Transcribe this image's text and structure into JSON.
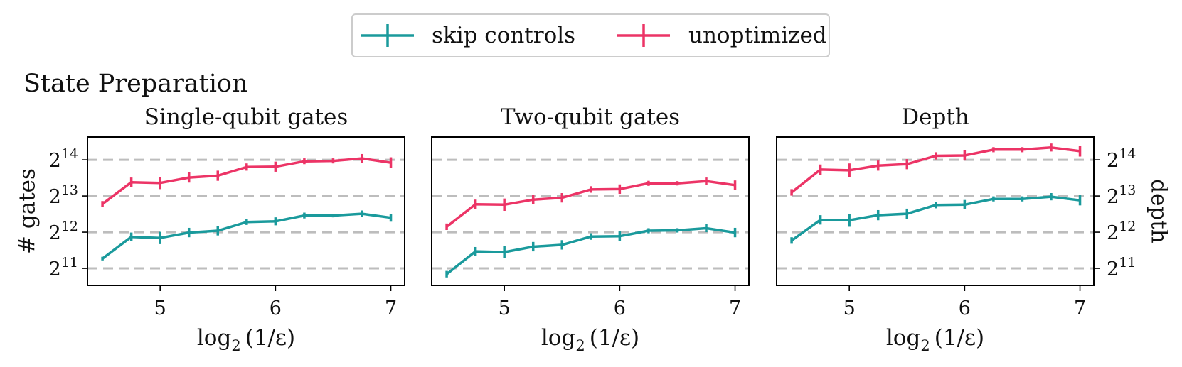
{
  "figure_title": "State Preparation",
  "legend": {
    "entries": [
      {
        "label": "skip controls",
        "color": "#1a9a9c"
      },
      {
        "label": "unoptimized",
        "color": "#ec3466"
      }
    ]
  },
  "colors": {
    "skip": "#1a9a9c",
    "unopt": "#ec3466",
    "grid": "#bdbdbd",
    "axis": "#000000"
  },
  "y_tick_base": "2",
  "chart_data": [
    {
      "type": "line",
      "title": "Single-qubit gates",
      "xlabel": "log2(1/ε)",
      "ylabel": "# gates",
      "ylabel_side": "left",
      "x": [
        4.5,
        4.75,
        5.0,
        5.25,
        5.5,
        5.75,
        6.0,
        6.25,
        6.5,
        6.75,
        7.0
      ],
      "xticks": [
        5,
        6,
        7
      ],
      "xlim": [
        4.37,
        7.12
      ],
      "ylim_log2": [
        10.53,
        14.63
      ],
      "yticks_log2": [
        11,
        12,
        13,
        14
      ],
      "grid": "horizontal dashed",
      "series": [
        {
          "name": "skip controls",
          "color": "#1a9a9c",
          "values_log2": [
            11.27,
            11.87,
            11.84,
            11.99,
            12.04,
            12.28,
            12.3,
            12.46,
            12.46,
            12.51,
            12.4
          ],
          "errors": [
            0.05,
            0.12,
            0.17,
            0.13,
            0.13,
            0.08,
            0.11,
            0.08,
            0.05,
            0.09,
            0.11
          ]
        },
        {
          "name": "unoptimized",
          "color": "#ec3466",
          "values_log2": [
            12.78,
            13.38,
            13.36,
            13.51,
            13.56,
            13.8,
            13.81,
            13.96,
            13.97,
            14.04,
            13.92
          ],
          "errors": [
            0.08,
            0.13,
            0.17,
            0.14,
            0.14,
            0.1,
            0.14,
            0.08,
            0.07,
            0.12,
            0.15
          ]
        }
      ]
    },
    {
      "type": "line",
      "title": "Two-qubit gates",
      "xlabel": "log2(1/ε)",
      "ylabel": "",
      "ylabel_side": "none",
      "x": [
        4.5,
        4.75,
        5.0,
        5.25,
        5.5,
        5.75,
        6.0,
        6.25,
        6.5,
        6.75,
        7.0
      ],
      "xticks": [
        5,
        6,
        7
      ],
      "xlim": [
        4.37,
        7.12
      ],
      "ylim_log2": [
        10.53,
        14.63
      ],
      "yticks_log2": [
        11,
        12,
        13,
        14
      ],
      "grid": "horizontal dashed",
      "series": [
        {
          "name": "skip controls",
          "color": "#1a9a9c",
          "values_log2": [
            10.84,
            11.47,
            11.45,
            11.6,
            11.65,
            11.88,
            11.89,
            12.04,
            12.05,
            12.11,
            11.99
          ],
          "errors": [
            0.09,
            0.12,
            0.17,
            0.13,
            0.13,
            0.09,
            0.13,
            0.07,
            0.06,
            0.11,
            0.13
          ]
        },
        {
          "name": "unoptimized",
          "color": "#ec3466",
          "values_log2": [
            12.15,
            12.77,
            12.76,
            12.9,
            12.95,
            13.18,
            13.19,
            13.35,
            13.35,
            13.41,
            13.3
          ],
          "errors": [
            0.09,
            0.13,
            0.17,
            0.13,
            0.13,
            0.09,
            0.13,
            0.07,
            0.06,
            0.1,
            0.13
          ]
        }
      ]
    },
    {
      "type": "line",
      "title": "Depth",
      "xlabel": "log2(1/ε)",
      "ylabel": "depth",
      "ylabel_side": "right",
      "x": [
        4.5,
        4.75,
        5.0,
        5.25,
        5.5,
        5.75,
        6.0,
        6.25,
        6.5,
        6.75,
        7.0
      ],
      "xticks": [
        5,
        6,
        7
      ],
      "xlim": [
        4.37,
        7.12
      ],
      "ylim_log2": [
        10.53,
        14.63
      ],
      "yticks_log2": [
        11,
        12,
        13,
        14
      ],
      "grid": "horizontal dashed",
      "series": [
        {
          "name": "skip controls",
          "color": "#1a9a9c",
          "values_log2": [
            11.77,
            12.34,
            12.33,
            12.47,
            12.51,
            12.75,
            12.76,
            12.92,
            12.92,
            12.98,
            12.88
          ],
          "errors": [
            0.09,
            0.13,
            0.18,
            0.14,
            0.14,
            0.09,
            0.13,
            0.07,
            0.07,
            0.1,
            0.14
          ]
        },
        {
          "name": "unoptimized",
          "color": "#ec3466",
          "values_log2": [
            13.1,
            13.73,
            13.71,
            13.84,
            13.88,
            14.11,
            14.12,
            14.28,
            14.28,
            14.34,
            14.24
          ],
          "errors": [
            0.09,
            0.14,
            0.19,
            0.14,
            0.14,
            0.1,
            0.14,
            0.07,
            0.07,
            0.11,
            0.15
          ]
        }
      ]
    }
  ]
}
